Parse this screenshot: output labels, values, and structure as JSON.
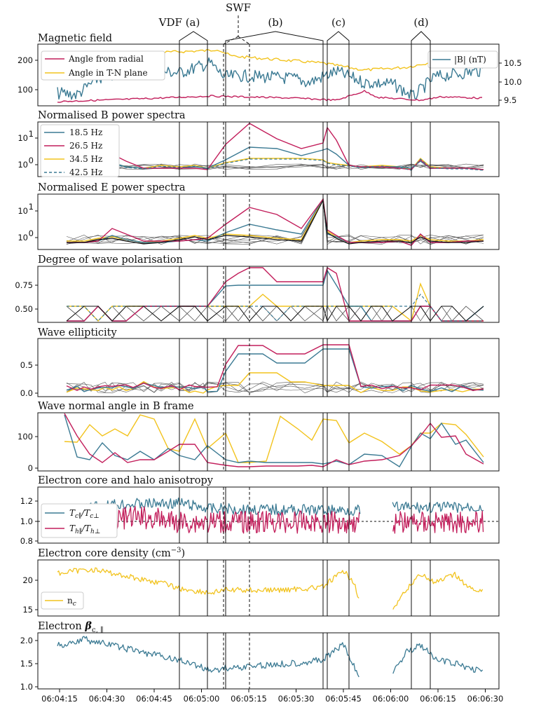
{
  "colors": {
    "blue": "#3b7a93",
    "magenta": "#c21e5b",
    "yellow": "#f2c31e",
    "black": "#111111"
  },
  "annotations": {
    "vdf_a": "VDF (a)",
    "swf": "SWF",
    "b": "(b)",
    "c": "(c)",
    "d": "(d)"
  },
  "x_ticks": [
    "06:04:15",
    "06:04:30",
    "06:04:45",
    "06:05:00",
    "06:05:15",
    "06:05:30",
    "06:05:45",
    "06:06:00",
    "06:06:15",
    "06:06:30"
  ],
  "chart_data": [
    {
      "type": "line",
      "title": "Magnetic field",
      "series": [
        {
          "name": "Angle from radial",
          "color": "#c21e5b"
        },
        {
          "name": "Angle in T-N plane",
          "color": "#f2c31e"
        },
        {
          "name": "|B| (nT)",
          "color": "#3b7a93",
          "axis": "right"
        }
      ],
      "y_ticks": [
        "100",
        "200"
      ],
      "y2_ticks": [
        "9.5",
        "10.0",
        "10.5"
      ]
    },
    {
      "type": "line",
      "title": "Normalised B power spectra",
      "series": [
        {
          "name": "18.5 Hz",
          "color": "#3b7a93"
        },
        {
          "name": "26.5 Hz",
          "color": "#c21e5b"
        },
        {
          "name": "34.5 Hz",
          "color": "#f2c31e"
        },
        {
          "name": "42.5 Hz",
          "color": "#3b7a93",
          "dashed": true
        }
      ],
      "y_ticks": [
        "10",
        "10"
      ],
      "y_exps": [
        "1",
        "0"
      ]
    },
    {
      "type": "line",
      "title": "Normalised E power spectra",
      "y_ticks": [
        "10",
        "10"
      ],
      "y_exps": [
        "1",
        "0"
      ]
    },
    {
      "type": "line",
      "title": "Degree of wave polarisation",
      "y_ticks": [
        "0.75",
        "0.50"
      ]
    },
    {
      "type": "line",
      "title": "Wave ellipticity",
      "y_ticks": [
        "0.5",
        "0.0"
      ]
    },
    {
      "type": "line",
      "title": "Wave normal angle in B frame",
      "y_ticks": [
        "100",
        "0"
      ]
    },
    {
      "type": "line",
      "title": "Electron core and halo anisotropy",
      "legend": [
        {
          "main": "T",
          "sub": "c∥",
          "main2": "/T",
          "sub2": "c⊥",
          "color": "#3b7a93"
        },
        {
          "main": "T",
          "sub": "h∥",
          "main2": "/T",
          "sub2": "h⊥",
          "color": "#c21e5b"
        }
      ],
      "y_ticks": [
        "1.2",
        "1.0",
        "0.8"
      ]
    },
    {
      "type": "line",
      "title": "Electron core density (cm",
      "title_sup": "−3",
      "title_end": ")",
      "legend": [
        {
          "main": "n",
          "sub": "c",
          "color": "#f2c31e"
        }
      ],
      "y_ticks": [
        "20",
        "15"
      ]
    },
    {
      "type": "line",
      "title": "Electron ",
      "title_beta": "β",
      "title_sub": "c, ∥",
      "y_ticks": [
        "2.0",
        "1.5",
        "1.0"
      ]
    }
  ]
}
